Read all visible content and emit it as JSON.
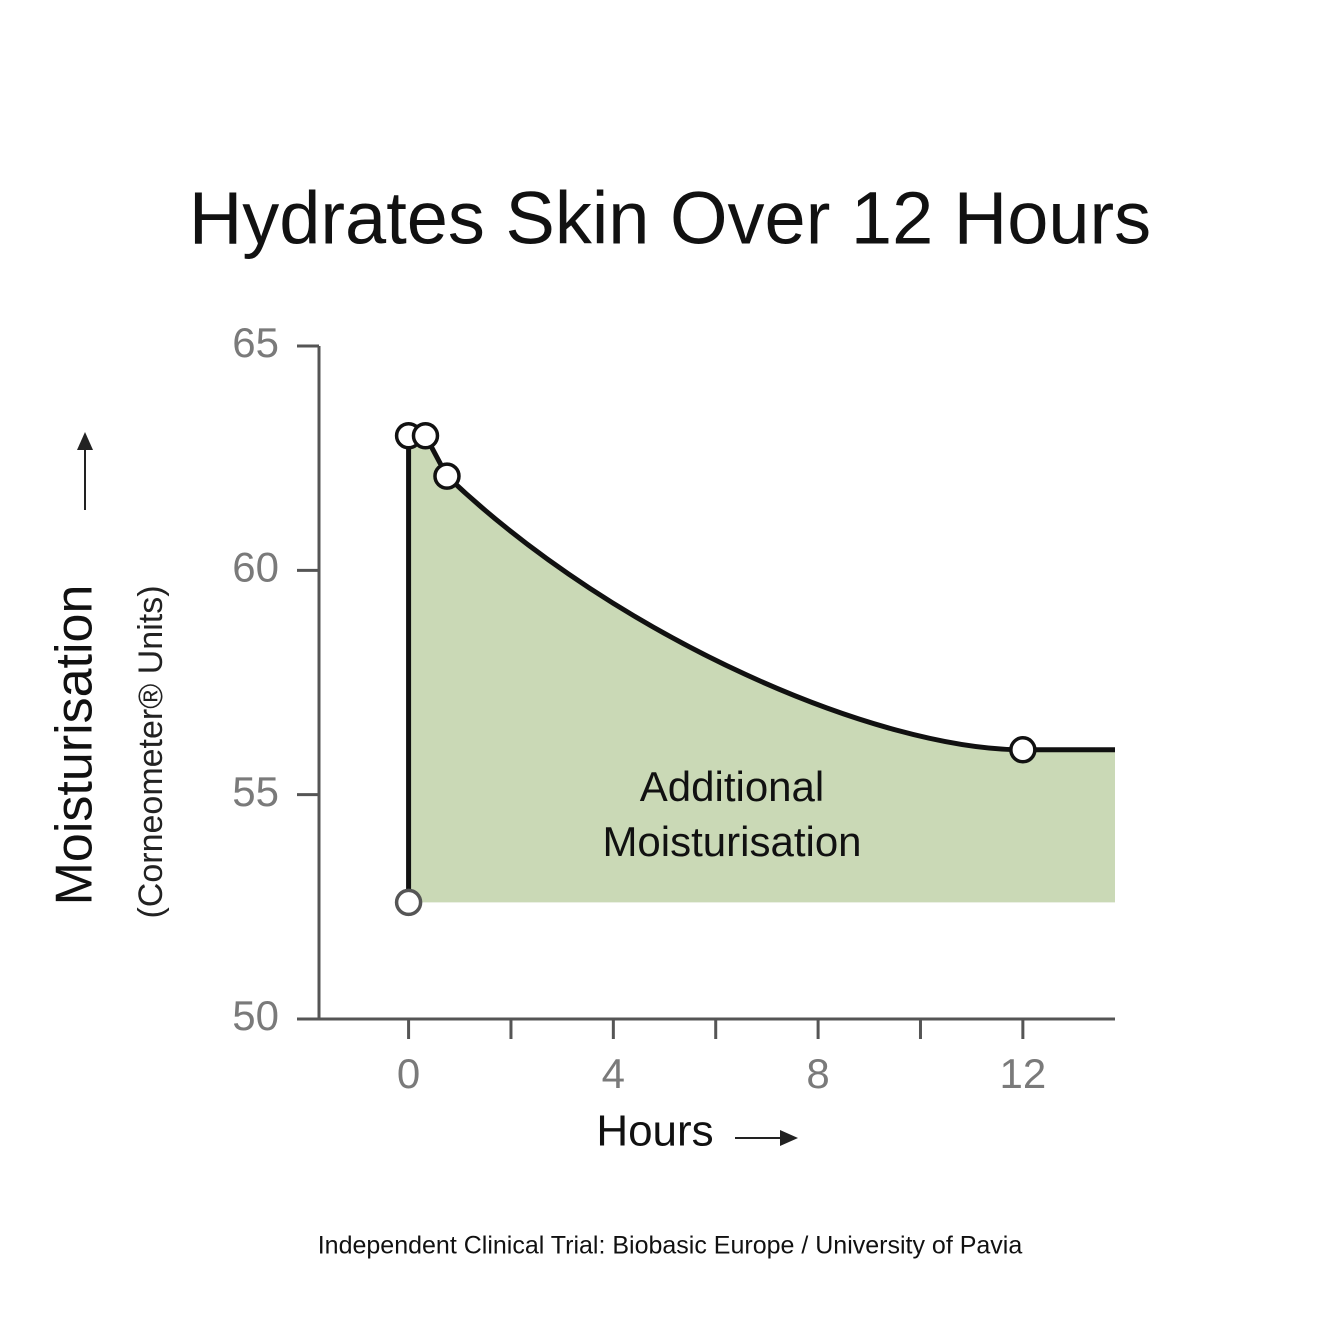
{
  "chart_data": {
    "type": "line",
    "title": "Hydrates Skin Over 12 Hours",
    "y_label": "Moisturisation",
    "y_sublabel": "(Corneometer® Units)",
    "x_label": "Hours",
    "annotation": [
      "Additional",
      "Moisturisation"
    ],
    "footnote": "Independent Clinical Trial: Biobasic Europe / University of Pavia",
    "xlim": [
      -1.75,
      13.8
    ],
    "ylim": [
      50,
      65
    ],
    "xticks": [
      0,
      4,
      8,
      12
    ],
    "xminor_ticks": [
      2,
      6,
      10
    ],
    "yticks": [
      50,
      55,
      60,
      65
    ],
    "fill_color": "#cad9b6",
    "series": [
      {
        "color": "#111111",
        "x": [
          0,
          0,
          0.33,
          0.75,
          12
        ],
        "values": [
          52.6,
          63,
          63,
          62.1,
          56
        ]
      }
    ]
  }
}
